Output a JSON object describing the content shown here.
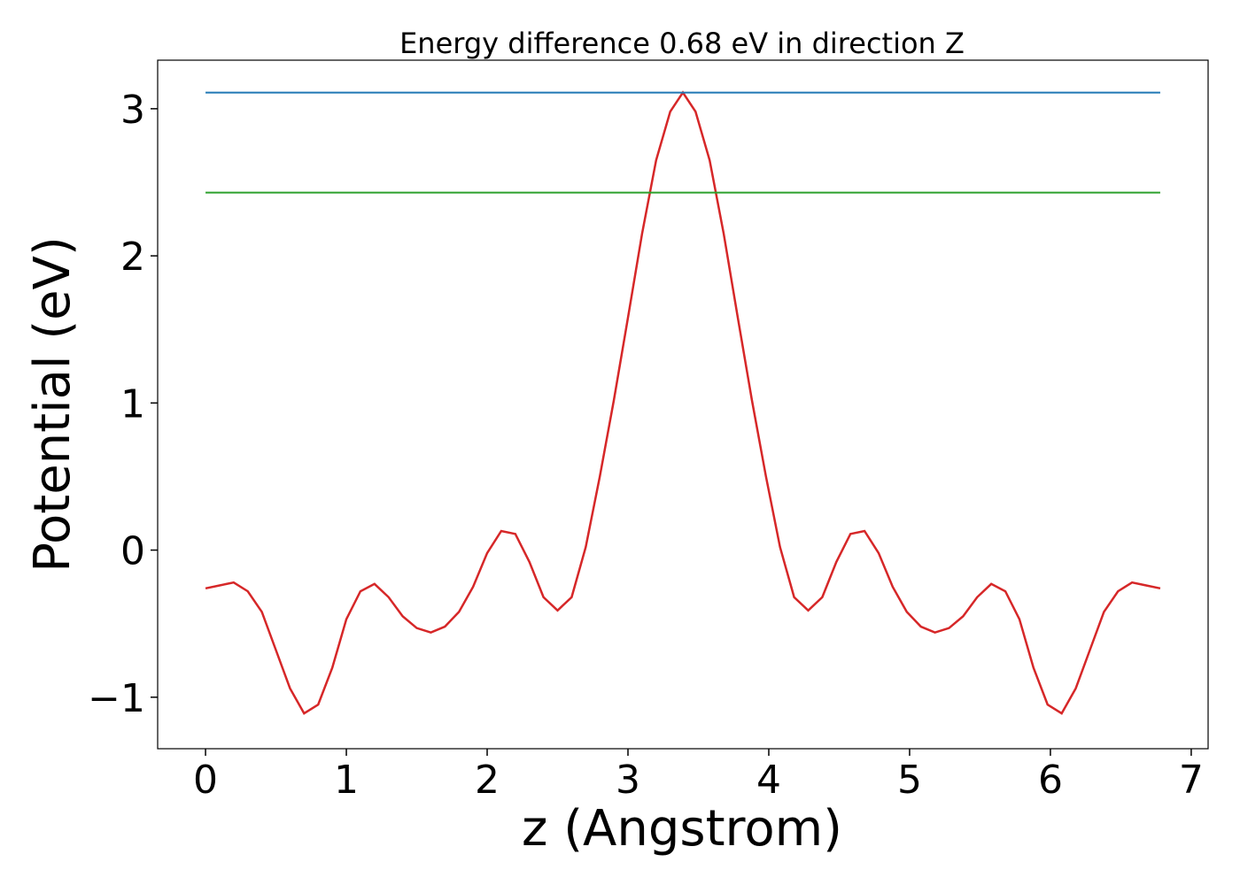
{
  "chart_data": {
    "type": "line",
    "title": "Energy difference 0.68 eV in direction Z",
    "xlabel": "z (Angstrom)",
    "ylabel": "Potential (eV)",
    "xlim": [
      -0.34,
      7.12
    ],
    "ylim": [
      -1.35,
      3.33
    ],
    "xticks": [
      0,
      1,
      2,
      3,
      4,
      5,
      6,
      7
    ],
    "yticks": [
      {
        "value": -1,
        "label": "−1"
      },
      0,
      1,
      2,
      3
    ],
    "grid": false,
    "series": [
      {
        "color": "#d62728",
        "x": [
          0,
          0.1,
          0.2,
          0.3,
          0.4,
          0.5,
          0.6,
          0.7,
          0.8,
          0.9,
          1.0,
          1.1,
          1.2,
          1.3,
          1.4,
          1.5,
          1.6,
          1.7,
          1.8,
          1.9,
          2.0,
          2.1,
          2.2,
          2.3,
          2.4,
          2.5,
          2.6,
          2.7,
          2.8,
          2.9,
          3.0,
          3.1,
          3.2,
          3.3,
          3.39,
          3.48,
          3.58,
          3.68,
          3.78,
          3.88,
          3.98,
          4.08,
          4.18,
          4.28,
          4.38,
          4.48,
          4.58,
          4.68,
          4.78,
          4.88,
          4.98,
          5.08,
          5.18,
          5.28,
          5.38,
          5.48,
          5.58,
          5.68,
          5.78,
          5.88,
          5.98,
          6.08,
          6.18,
          6.28,
          6.38,
          6.48,
          6.58,
          6.68,
          6.78
        ],
        "values": [
          -0.26,
          -0.24,
          -0.22,
          -0.28,
          -0.42,
          -0.68,
          -0.94,
          -1.11,
          -1.05,
          -0.8,
          -0.47,
          -0.28,
          -0.23,
          -0.32,
          -0.45,
          -0.53,
          -0.56,
          -0.52,
          -0.42,
          -0.25,
          -0.02,
          0.13,
          0.11,
          -0.08,
          -0.32,
          -0.41,
          -0.32,
          0.02,
          0.5,
          1.02,
          1.58,
          2.15,
          2.65,
          2.98,
          3.11,
          2.98,
          2.65,
          2.15,
          1.58,
          1.02,
          0.5,
          0.02,
          -0.32,
          -0.41,
          -0.32,
          -0.08,
          0.11,
          0.13,
          -0.02,
          -0.25,
          -0.42,
          -0.52,
          -0.56,
          -0.53,
          -0.45,
          -0.32,
          -0.23,
          -0.28,
          -0.47,
          -0.8,
          -1.05,
          -1.11,
          -0.94,
          -0.68,
          -0.42,
          -0.28,
          -0.22,
          -0.24,
          -0.26
        ]
      },
      {
        "color": "#1f77b4",
        "x": [
          0,
          6.78
        ],
        "values": [
          3.11,
          3.11
        ]
      },
      {
        "color": "#2ca02c",
        "x": [
          0,
          6.78
        ],
        "values": [
          2.43,
          2.43
        ]
      }
    ]
  }
}
